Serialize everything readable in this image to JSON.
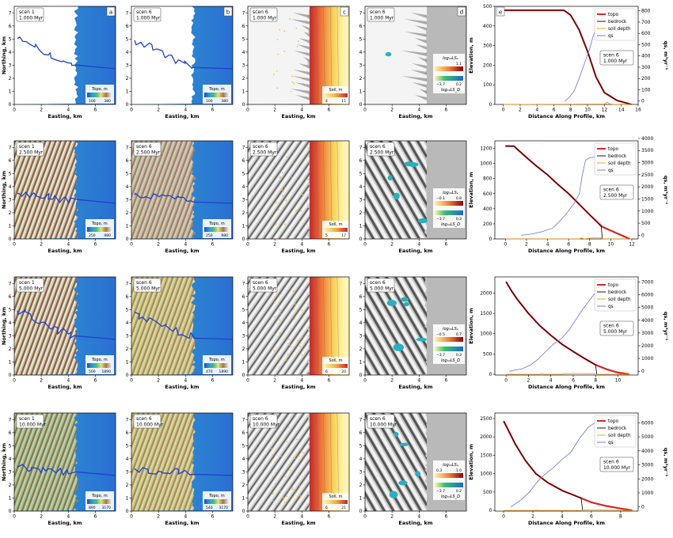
{
  "figure": {
    "panel_letters": [
      "a",
      "b",
      "c",
      "d",
      "e"
    ],
    "x_label_map": "Easting, km",
    "y_label_map": "Northing, km",
    "x_label_profile": "Distance Along Profile, km",
    "y_label_profile": "Elevation, m",
    "y2_label_profile": "qs, m³yr⁻¹",
    "map_x_ticks": [
      "0",
      "2",
      "4",
      "6"
    ],
    "map_y_ticks": [
      "0",
      "1",
      "2",
      "3",
      "4",
      "5",
      "6",
      "7"
    ],
    "colorbar_topo_label": "Topo, m",
    "colorbar_soil_label": "Soil, m",
    "colorbar_lse_label": "log₁₀LSₑ",
    "colorbar_lsd_label": "log₁₀LS_D",
    "legend": [
      "topo",
      "bedrock",
      "soil depth",
      "qs"
    ],
    "colors": {
      "topo": "#d62728",
      "bedrock": "#000000",
      "soil": "#ff9900",
      "qs": "#6f6fd6",
      "river": "#1f3fd0"
    }
  },
  "chart_data": [
    {
      "type": "line",
      "row": 1,
      "time": "1.000 Myr",
      "scenario_left": "scen 1",
      "scenario": "scen 6",
      "topo_colorbar": {
        "a": [
          "100",
          "380"
        ],
        "b": [
          "100",
          "380"
        ]
      },
      "soil_colorbar": [
        "4",
        "11"
      ],
      "lse_colorbar": [
        "",
        "1.1"
      ],
      "lsd_colorbar": [
        "−3.7",
        "0.2"
      ],
      "xlim": [
        -1,
        16
      ],
      "ylim": [
        0,
        500
      ],
      "y2lim": [
        -30,
        840
      ],
      "xticks": [
        "0",
        "2",
        "4",
        "6",
        "8",
        "10",
        "12",
        "14",
        "16"
      ],
      "yticks": [
        "0",
        "100",
        "200",
        "300",
        "400",
        "500"
      ],
      "y2ticks": [
        "0",
        "100",
        "200",
        "300",
        "400",
        "500",
        "600",
        "700",
        "800"
      ],
      "series": [
        {
          "name": "topo",
          "axis": "left",
          "x": [
            0,
            6.8,
            7.2,
            8,
            9,
            10,
            11,
            12,
            13.5,
            15.2
          ],
          "y": [
            480,
            480,
            480,
            455,
            380,
            270,
            140,
            60,
            20,
            0
          ]
        },
        {
          "name": "bedrock",
          "axis": "left",
          "x": [
            0,
            6.8,
            7.2,
            8,
            9,
            10,
            11,
            12,
            13.5,
            15.2
          ],
          "y": [
            480,
            480,
            480,
            455,
            380,
            270,
            140,
            60,
            20,
            0
          ]
        },
        {
          "name": "soil depth",
          "axis": "left",
          "x": [
            0,
            12,
            12.3,
            12.6,
            13,
            15.2
          ],
          "y": [
            0,
            2,
            12,
            3,
            1,
            0
          ]
        },
        {
          "name": "qs",
          "axis": "right",
          "x": [
            7.3,
            7.8,
            8.4,
            9,
            9.6,
            10.2,
            10.6,
            11,
            11.5,
            12,
            12.4,
            12.8
          ],
          "y": [
            0,
            30,
            90,
            200,
            330,
            450,
            560,
            650,
            720,
            760,
            790,
            800
          ]
        }
      ]
    },
    {
      "type": "line",
      "row": 2,
      "time": "2.500 Myr",
      "scenario_left": "scen 1",
      "scenario": "scen 6",
      "topo_colorbar": {
        "a": [
          "250",
          "980"
        ],
        "b": [
          "250",
          "980"
        ]
      },
      "soil_colorbar": [
        "5",
        "17"
      ],
      "lse_colorbar": [
        "−0.1",
        "0.8"
      ],
      "lsd_colorbar": [
        "−3.7",
        "0.3"
      ],
      "xlim": [
        -1,
        12.6
      ],
      "ylim": [
        0,
        1300
      ],
      "y2lim": [
        -150,
        3900
      ],
      "xticks": [
        "0",
        "2",
        "4",
        "6",
        "8",
        "10",
        "12"
      ],
      "yticks": [
        "0",
        "200",
        "400",
        "600",
        "800",
        "1000",
        "1200"
      ],
      "y2ticks": [
        "0",
        "500",
        "1000",
        "1500",
        "2000",
        "2500",
        "3000",
        "3500",
        "4000"
      ],
      "series": [
        {
          "name": "topo",
          "axis": "left",
          "x": [
            0,
            0.8,
            2,
            3,
            4,
            5,
            6,
            7,
            8,
            9.2,
            10.5,
            11.8
          ],
          "y": [
            1230,
            1230,
            1080,
            960,
            850,
            720,
            600,
            460,
            320,
            160,
            80,
            0
          ]
        },
        {
          "name": "bedrock",
          "axis": "left",
          "x": [
            0,
            0.8,
            2,
            3,
            4,
            5,
            6,
            7,
            8,
            9.1,
            9.2
          ],
          "y": [
            1230,
            1230,
            1080,
            960,
            850,
            720,
            600,
            460,
            320,
            160,
            0
          ]
        },
        {
          "name": "soil depth",
          "axis": "left",
          "x": [
            0,
            7,
            7.2,
            7.5,
            8,
            9,
            9.2,
            12
          ],
          "y": [
            0,
            0,
            15,
            0,
            10,
            20,
            0,
            0
          ]
        },
        {
          "name": "qs",
          "axis": "right",
          "x": [
            1.5,
            2.5,
            3.5,
            4.5,
            5.2,
            5.8,
            6.5,
            7,
            7.3,
            7.6,
            8,
            8.8,
            9.5,
            10.5,
            11.5
          ],
          "y": [
            0,
            50,
            150,
            300,
            600,
            900,
            1300,
            1700,
            2500,
            3100,
            3200,
            3250,
            3500,
            3700,
            3750
          ]
        }
      ]
    },
    {
      "type": "line",
      "row": 3,
      "time": "5.000 Myr",
      "scenario_left": "scen 1",
      "scenario": "scen 6",
      "topo_colorbar": {
        "a": [
          "500",
          "1890"
        ],
        "b": [
          "470",
          "1890"
        ]
      },
      "soil_colorbar": [
        "6",
        "20"
      ],
      "lse_colorbar": [
        "−0.5",
        "0.7"
      ],
      "lsd_colorbar": [
        "−3.7",
        "0.3"
      ],
      "xlim": [
        -1,
        11.8
      ],
      "ylim": [
        -20,
        2400
      ],
      "y2lim": [
        -300,
        7400
      ],
      "xticks": [
        "0",
        "2",
        "4",
        "6",
        "8",
        "10"
      ],
      "yticks": [
        "0",
        "500",
        "1000",
        "1500",
        "2000"
      ],
      "y2ticks": [
        "0",
        "1000",
        "2000",
        "3000",
        "4000",
        "5000",
        "6000",
        "7000"
      ],
      "series": [
        {
          "name": "topo",
          "axis": "left",
          "x": [
            0,
            0.5,
            1,
            2,
            3,
            4,
            5,
            6,
            7,
            8,
            9,
            10,
            11
          ],
          "y": [
            2280,
            2050,
            1850,
            1500,
            1200,
            960,
            740,
            560,
            390,
            230,
            120,
            40,
            0
          ]
        },
        {
          "name": "bedrock",
          "axis": "left",
          "x": [
            0,
            0.5,
            1,
            2,
            3,
            4,
            5,
            6,
            7,
            8,
            8.1
          ],
          "y": [
            2280,
            2050,
            1850,
            1500,
            1200,
            960,
            740,
            560,
            390,
            230,
            0
          ]
        },
        {
          "name": "soil depth",
          "axis": "left",
          "x": [
            0,
            3,
            3.2,
            3.4,
            5,
            5.2,
            8,
            8.1,
            11
          ],
          "y": [
            0,
            0,
            10,
            0,
            0,
            15,
            20,
            0,
            0
          ]
        },
        {
          "name": "qs",
          "axis": "right",
          "x": [
            0.3,
            1.5,
            2.2,
            2.8,
            3.5,
            4.2,
            5,
            5.6,
            6.2,
            6.8,
            7.4,
            8,
            8.5,
            9.3,
            10.5
          ],
          "y": [
            0,
            200,
            500,
            900,
            1500,
            2100,
            2600,
            3200,
            4000,
            4800,
            5500,
            6200,
            6900,
            7150,
            7200
          ]
        }
      ]
    },
    {
      "type": "line",
      "row": 4,
      "time": "10.000 Myr",
      "scenario_left": "scen 1",
      "scenario": "scen 6",
      "topo_colorbar": {
        "a": [
          "890",
          "3170"
        ],
        "b": [
          "540",
          "3170"
        ]
      },
      "soil_colorbar": [
        "6",
        "21"
      ],
      "lse_colorbar": [
        "0.3",
        "1.0"
      ],
      "lsd_colorbar": [
        "−3.7",
        "0.2"
      ],
      "xlim": [
        -0.6,
        9.2
      ],
      "ylim": [
        -20,
        2650
      ],
      "y2lim": [
        -300,
        6700
      ],
      "xticks": [
        "0",
        "2",
        "4",
        "6",
        "8"
      ],
      "yticks": [
        "0",
        "500",
        "1000",
        "1500",
        "2000",
        "2500"
      ],
      "y2ticks": [
        "0",
        "1000",
        "2000",
        "3000",
        "4000",
        "5000",
        "6000"
      ],
      "series": [
        {
          "name": "topo",
          "axis": "left",
          "x": [
            0,
            0.3,
            0.8,
            1.5,
            2.2,
            3,
            4,
            5,
            6,
            7,
            8,
            8.8
          ],
          "y": [
            2430,
            2200,
            1800,
            1350,
            1000,
            760,
            540,
            380,
            220,
            120,
            50,
            0
          ]
        },
        {
          "name": "bedrock",
          "axis": "left",
          "x": [
            0,
            0.3,
            0.8,
            1.5,
            2.2,
            3,
            4,
            5,
            5.3,
            5.4
          ],
          "y": [
            2430,
            2200,
            1800,
            1350,
            1000,
            760,
            540,
            380,
            330,
            0
          ]
        },
        {
          "name": "soil depth",
          "axis": "left",
          "x": [
            0,
            2,
            2.3,
            2.5,
            5.3,
            5.4,
            8.8
          ],
          "y": [
            0,
            0,
            8,
            0,
            0,
            15,
            0
          ]
        },
        {
          "name": "qs",
          "axis": "right",
          "x": [
            0.5,
            1.2,
            1.8,
            2.3,
            2.8,
            3.4,
            4,
            4.6,
            5.2,
            5.8,
            6.4,
            7,
            7.6
          ],
          "y": [
            0,
            500,
            1100,
            1800,
            2300,
            2800,
            3400,
            3900,
            4900,
            5700,
            6100,
            6300,
            6300
          ]
        }
      ]
    }
  ]
}
